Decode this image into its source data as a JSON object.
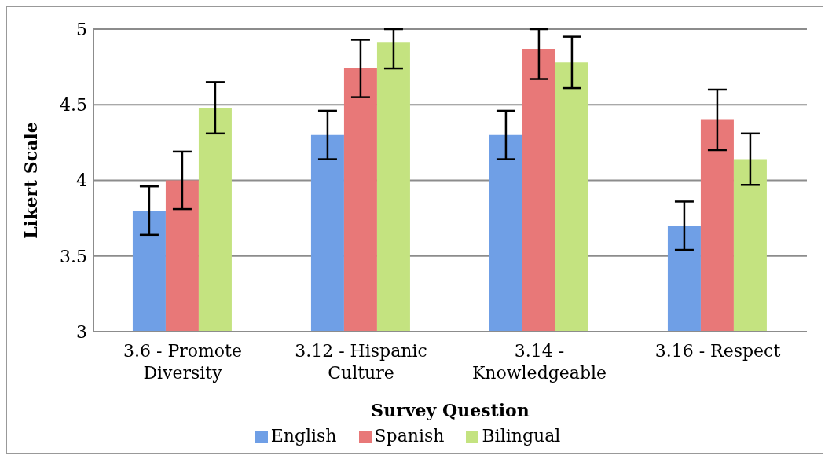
{
  "chart_data": {
    "type": "bar",
    "xlabel": "Survey Question",
    "ylabel": "Likert Scale",
    "categories": [
      "3.6 - Promote Diversity",
      "3.12 - Hispanic Culture",
      "3.14 - Knowledgeable",
      "3.16 - Respect"
    ],
    "series": [
      {
        "name": "English",
        "color": "#6f9fe6",
        "values": [
          3.8,
          4.3,
          4.3,
          3.7
        ],
        "errors": [
          0.16,
          0.16,
          0.16,
          0.16
        ]
      },
      {
        "name": "Spanish",
        "color": "#e87878",
        "values": [
          4.0,
          4.74,
          4.87,
          4.4
        ],
        "errors": [
          0.19,
          0.19,
          [
            4.67,
            5
          ],
          0.2
        ]
      },
      {
        "name": "Bilingual",
        "color": "#c4e380",
        "values": [
          4.48,
          4.91,
          4.78,
          4.14
        ],
        "errors": [
          0.17,
          [
            4.74,
            5
          ],
          0.17,
          0.17
        ]
      }
    ],
    "ylim": [
      3,
      5
    ],
    "yticks": [
      3,
      3.5,
      4,
      4.5,
      5
    ],
    "grid": "y",
    "legend": "bottom"
  }
}
